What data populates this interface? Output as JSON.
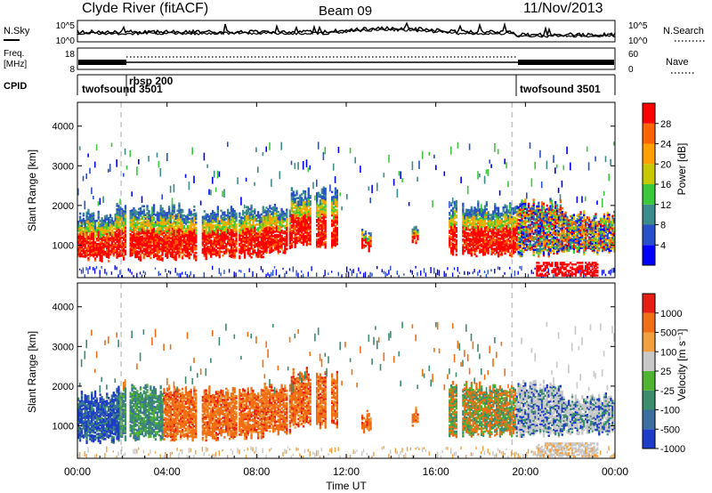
{
  "header": {
    "station": "Clyde River (fitACF)",
    "beam": "Beam 09",
    "date": "11/Nov/2013"
  },
  "strip_panels": {
    "nsky": {
      "label": "N.Sky",
      "ticks": [
        "10^5",
        "10^0"
      ],
      "right_ticks": [
        "10^5",
        "10^0"
      ],
      "right_label": "N.Search",
      "right_label_style": "dotted"
    },
    "freq": {
      "label_line1": "Freq.",
      "label_line2": "[MHz]",
      "ticks": [
        "18",
        "8"
      ],
      "right_ticks": [
        "60",
        "0"
      ],
      "right_label": "Nave",
      "right_label_style": "dotted"
    },
    "cpid": {
      "label": "CPID",
      "segments": [
        {
          "name": "twofsound  3501",
          "start_hour": 0,
          "end_hour": 1.95
        },
        {
          "name": "rbsp  200",
          "start_hour": 1.95,
          "end_hour": 19.4
        },
        {
          "name": "twofsound  3501",
          "start_hour": 19.4,
          "end_hour": 24
        }
      ]
    }
  },
  "chart_data": [
    {
      "type": "heatmap",
      "name": "power-panel",
      "ylabel": "Slant Range [km]",
      "ylim": [
        180,
        4600
      ],
      "yticks": [
        1000,
        2000,
        3000,
        4000
      ],
      "xlim": [
        0,
        24
      ],
      "colorbar": {
        "label": "Power [dB]",
        "ticks": [
          "28",
          "24",
          "20",
          "16",
          "12",
          "8",
          "4"
        ],
        "colors": [
          "#0000ff",
          "#2850c8",
          "#3c8c8c",
          "#3cc83c",
          "#c8c800",
          "#ffa000",
          "#ff6400",
          "#ff0000"
        ]
      }
    },
    {
      "type": "heatmap",
      "name": "velocity-panel",
      "ylabel": "Slant Range [km]",
      "ylim": [
        180,
        4600
      ],
      "yticks": [
        1000,
        2000,
        3000,
        4000
      ],
      "xlim": [
        0,
        24
      ],
      "xlabel": "Time UT",
      "xticks": [
        "00:00",
        "04:00",
        "08:00",
        "12:00",
        "16:00",
        "20:00",
        "00:00"
      ],
      "colorbar": {
        "label": "Velocity [m s⁻¹]",
        "ticks": [
          "1000",
          "500",
          "100",
          "25",
          "-25",
          "-100",
          "-500",
          "-1000"
        ],
        "colors": [
          "#1e3cc8",
          "#3c6ea0",
          "#3c8c6e",
          "#50b432",
          "#c8c8c8",
          "#f0a040",
          "#f06e14",
          "#e61e14"
        ]
      }
    }
  ]
}
